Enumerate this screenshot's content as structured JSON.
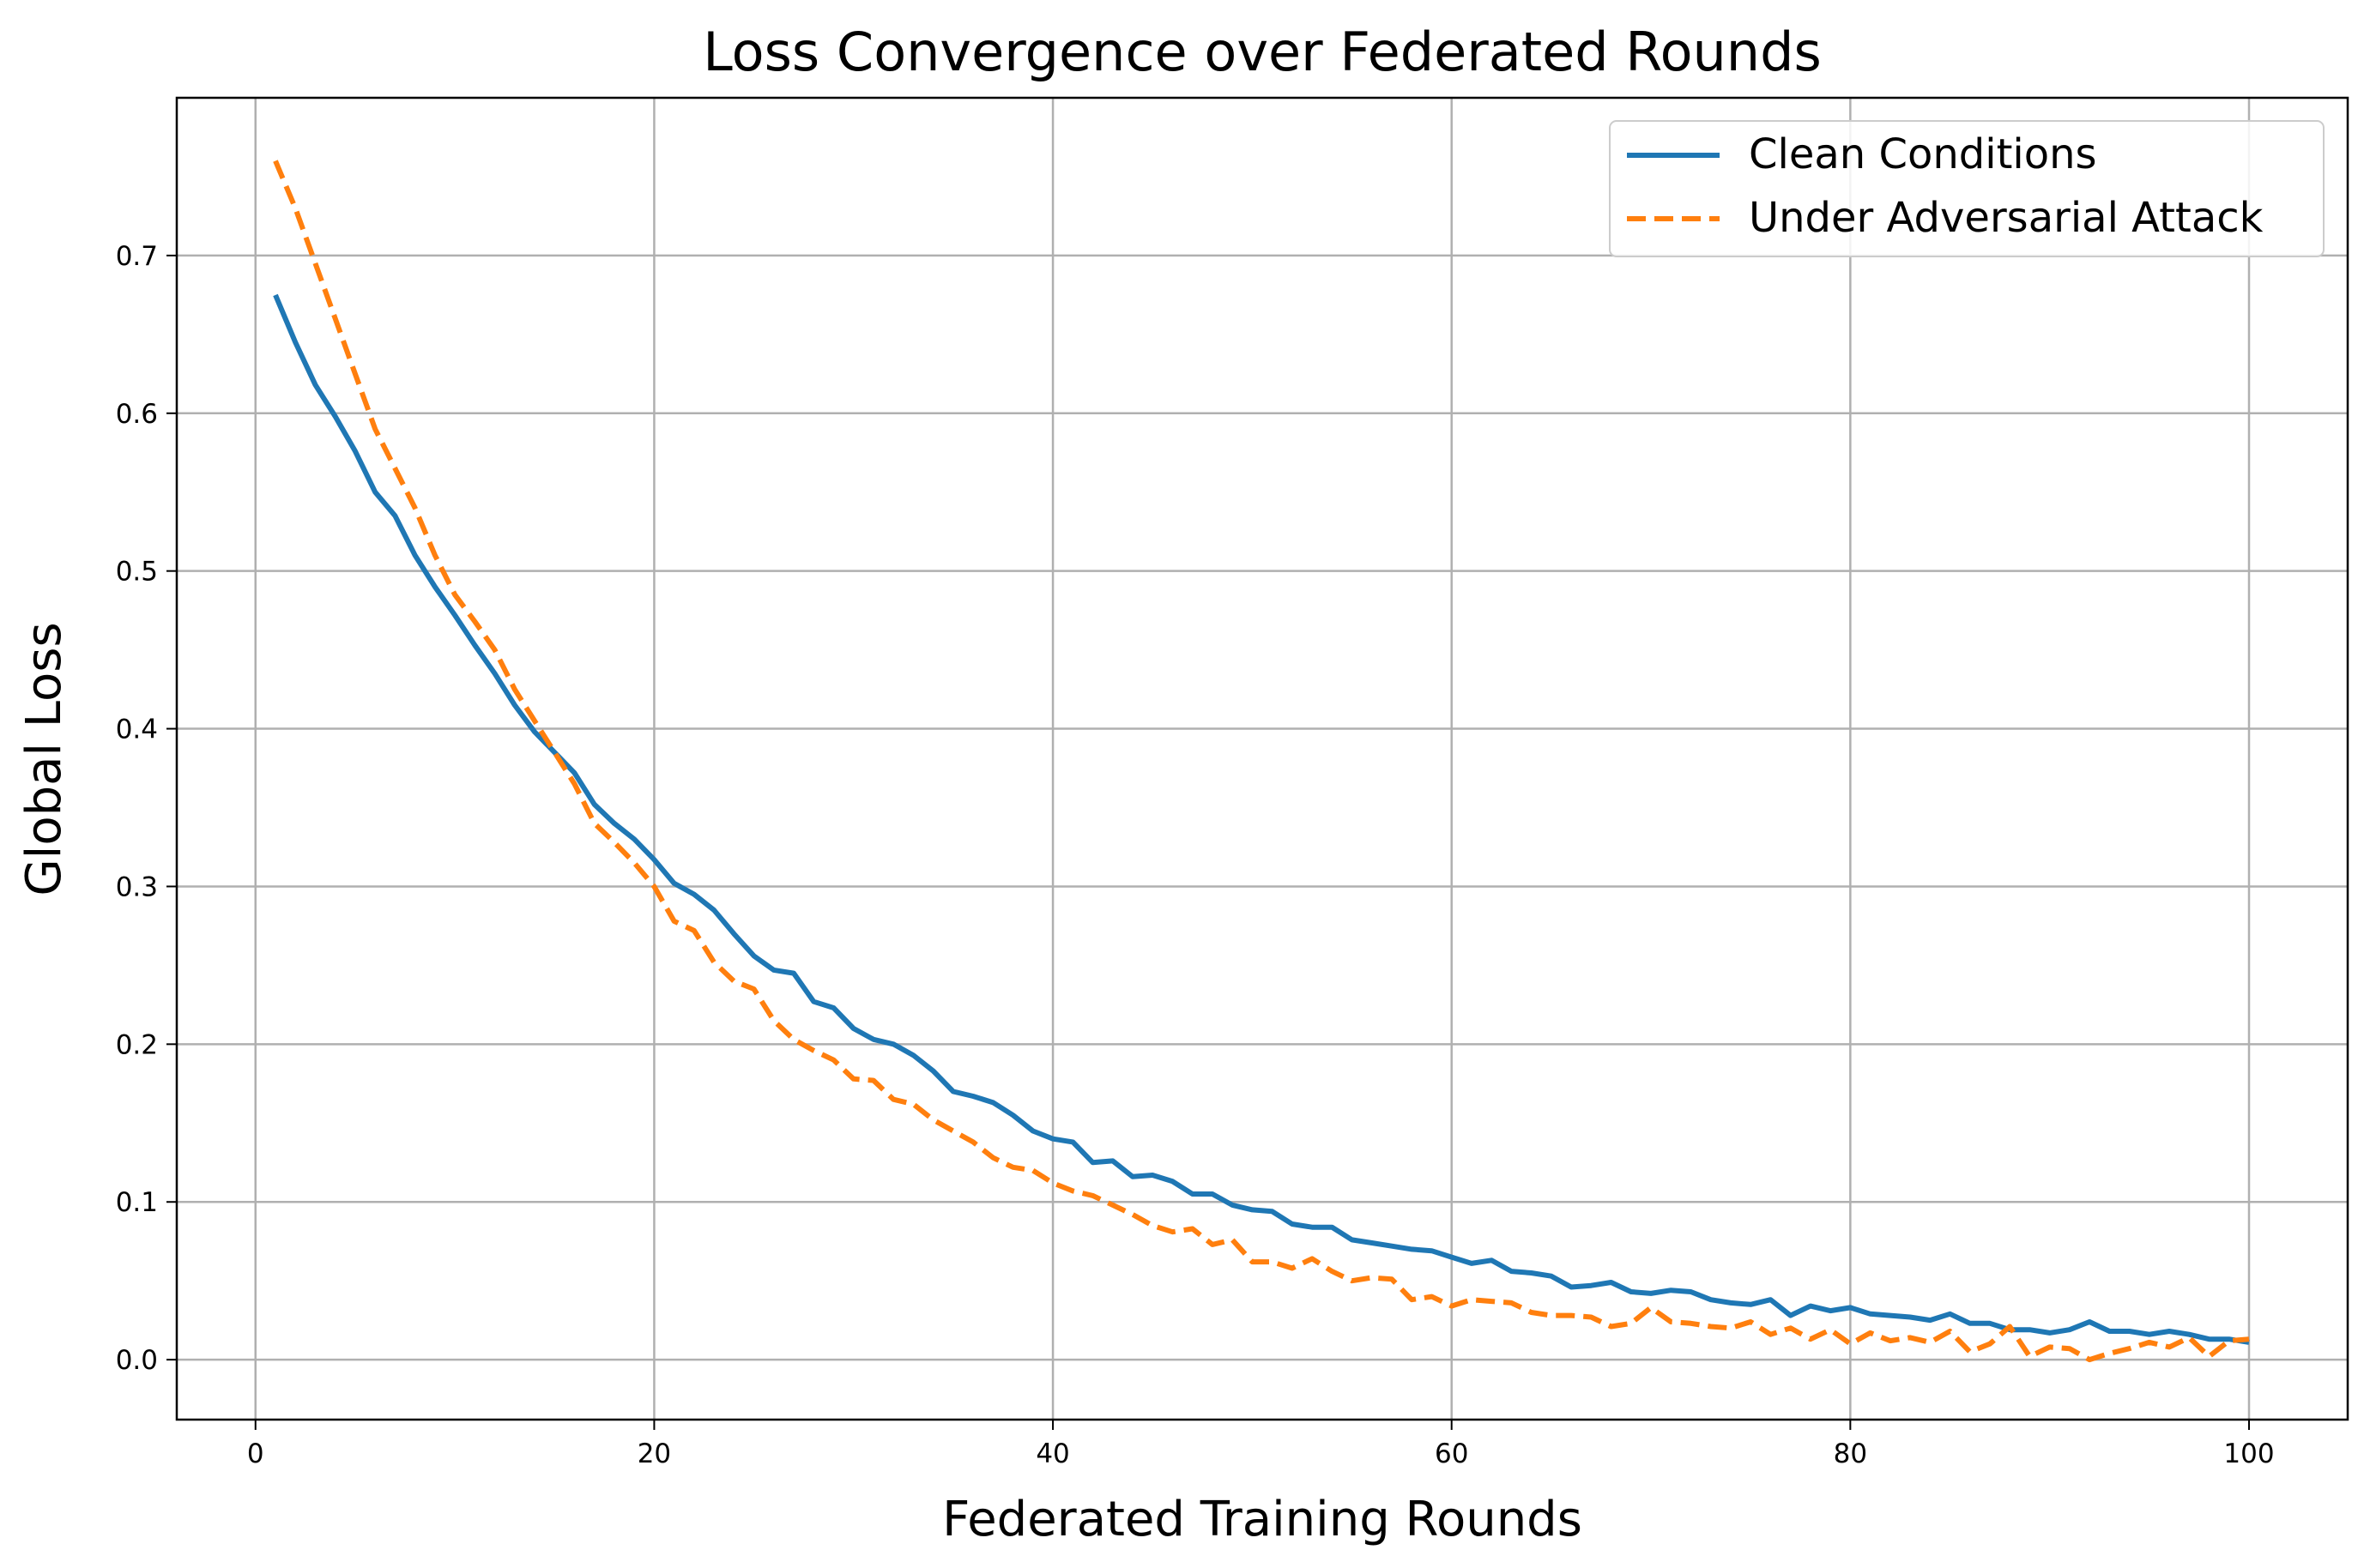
{
  "chart_data": {
    "type": "line",
    "title": "Loss Convergence over Federated Rounds",
    "xlabel": "Federated Training Rounds",
    "ylabel": "Global Loss",
    "xlim": [
      -3.95,
      104.95
    ],
    "ylim": [
      -0.038,
      0.8
    ],
    "xticks": [
      0,
      20,
      40,
      60,
      80,
      100
    ],
    "yticks": [
      0.0,
      0.1,
      0.2,
      0.3,
      0.4,
      0.5,
      0.6,
      0.7
    ],
    "xtick_labels": [
      "0",
      "20",
      "40",
      "60",
      "80",
      "100"
    ],
    "ytick_labels": [
      "0.0",
      "0.1",
      "0.2",
      "0.3",
      "0.4",
      "0.5",
      "0.6",
      "0.7"
    ],
    "grid": true,
    "legend_position": "top-right",
    "x_start": 1,
    "series": [
      {
        "name": "Clean Conditions",
        "color": "#1f77b4",
        "style": "solid",
        "values": [
          0.675,
          0.645,
          0.618,
          0.598,
          0.576,
          0.55,
          0.535,
          0.51,
          0.49,
          0.472,
          0.453,
          0.435,
          0.415,
          0.398,
          0.385,
          0.372,
          0.352,
          0.34,
          0.33,
          0.317,
          0.302,
          0.295,
          0.285,
          0.27,
          0.256,
          0.247,
          0.245,
          0.227,
          0.223,
          0.21,
          0.203,
          0.2,
          0.193,
          0.183,
          0.17,
          0.167,
          0.163,
          0.155,
          0.145,
          0.14,
          0.138,
          0.125,
          0.126,
          0.116,
          0.117,
          0.113,
          0.105,
          0.105,
          0.098,
          0.095,
          0.094,
          0.086,
          0.084,
          0.084,
          0.076,
          0.074,
          0.072,
          0.07,
          0.069,
          0.065,
          0.061,
          0.063,
          0.056,
          0.055,
          0.053,
          0.046,
          0.047,
          0.049,
          0.043,
          0.042,
          0.044,
          0.043,
          0.038,
          0.036,
          0.035,
          0.038,
          0.028,
          0.034,
          0.031,
          0.033,
          0.029,
          0.028,
          0.027,
          0.025,
          0.029,
          0.023,
          0.023,
          0.019,
          0.019,
          0.017,
          0.019,
          0.024,
          0.018,
          0.018,
          0.016,
          0.018,
          0.016,
          0.013,
          0.013,
          0.011
        ]
      },
      {
        "name": "Under Adversarial Attack",
        "color": "#ff7f0e",
        "style": "dashed",
        "values": [
          0.76,
          0.73,
          0.695,
          0.66,
          0.625,
          0.59,
          0.565,
          0.54,
          0.51,
          0.485,
          0.468,
          0.45,
          0.425,
          0.405,
          0.385,
          0.365,
          0.34,
          0.328,
          0.315,
          0.3,
          0.278,
          0.272,
          0.252,
          0.24,
          0.235,
          0.215,
          0.203,
          0.196,
          0.19,
          0.178,
          0.177,
          0.165,
          0.162,
          0.152,
          0.145,
          0.138,
          0.128,
          0.122,
          0.12,
          0.112,
          0.107,
          0.104,
          0.098,
          0.092,
          0.085,
          0.081,
          0.083,
          0.073,
          0.076,
          0.062,
          0.062,
          0.058,
          0.064,
          0.056,
          0.05,
          0.052,
          0.051,
          0.038,
          0.04,
          0.034,
          0.038,
          0.037,
          0.036,
          0.03,
          0.028,
          0.028,
          0.027,
          0.021,
          0.023,
          0.033,
          0.024,
          0.023,
          0.021,
          0.02,
          0.024,
          0.016,
          0.02,
          0.013,
          0.019,
          0.01,
          0.017,
          0.012,
          0.014,
          0.011,
          0.018,
          0.005,
          0.01,
          0.021,
          0.002,
          0.008,
          0.007,
          0.0,
          0.004,
          0.007,
          0.011,
          0.008,
          0.014,
          0.002,
          0.012,
          0.013
        ]
      }
    ]
  }
}
